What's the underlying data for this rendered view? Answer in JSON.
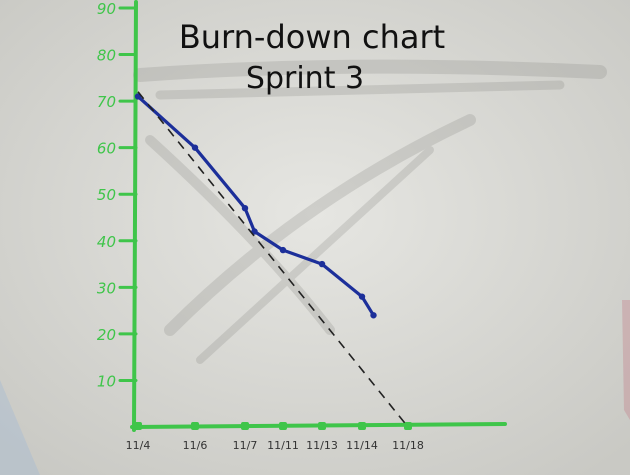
{
  "colors": {
    "board": "#dcdcd8",
    "axis": "#3fc54a",
    "actual": "#1c2f9a",
    "ideal": "#222222",
    "title": "#111111"
  },
  "chart_data": {
    "type": "line",
    "title": "Burn-down chart",
    "subtitle": "Sprint 3",
    "xlabel": "",
    "ylabel": "",
    "x_ticks": [
      "11/4",
      "11/6",
      "11/7",
      "11/11",
      "11/13",
      "11/14",
      "11/18"
    ],
    "y_ticks": [
      10,
      20,
      30,
      40,
      50,
      60,
      70,
      80,
      90
    ],
    "ylim": [
      0,
      90
    ],
    "grid": false,
    "legend": "none",
    "series": [
      {
        "style": "solid",
        "x": [
          "11/4",
          "11/6",
          "11/7",
          "11/8",
          "11/11",
          "11/13",
          "11/14",
          "11/15"
        ],
        "y": [
          71,
          60,
          47,
          42,
          38,
          35,
          28,
          24
        ]
      },
      {
        "style": "dashed",
        "x": [
          "11/4",
          "11/18"
        ],
        "y": [
          72,
          0
        ]
      }
    ]
  }
}
